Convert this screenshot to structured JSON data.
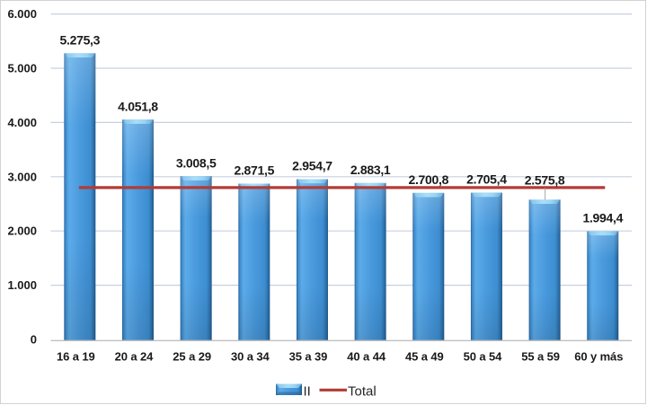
{
  "chart_data": {
    "type": "bar",
    "title": "",
    "categories": [
      "16 a 19",
      "20 a 24",
      "25 a 29",
      "30 a 34",
      "35 a 39",
      "40 a 44",
      "45 a 49",
      "50 a 54",
      "55 a 59",
      "60 y más"
    ],
    "series": [
      {
        "name": "II",
        "type": "bar",
        "color": "#4795d5",
        "values": [
          5275.3,
          4051.8,
          3008.5,
          2871.5,
          2954.7,
          2883.1,
          2700.8,
          2705.4,
          2575.8,
          1994.4
        ],
        "data_labels": [
          "5.275,3",
          "4.051,8",
          "3.008,5",
          "2.871,5",
          "2.954,7",
          "2.883,1",
          "2.700,8",
          "2.705,4",
          "2.575,8",
          "1.994,4"
        ]
      },
      {
        "name": "Total",
        "type": "line",
        "color": "#b23b36",
        "value": 2800
      }
    ],
    "y_axis": {
      "min": 0,
      "max": 6000,
      "tick_step": 1000,
      "tick_labels": [
        "0",
        "1.000",
        "2.000",
        "3.000",
        "4.000",
        "5.000",
        "6.000"
      ],
      "gridlines": true
    },
    "x_axis": {
      "label": ""
    },
    "legend_position": "bottom",
    "label_layout": {
      "raised_label_index": 8,
      "raised_label_lift": 17,
      "leader_line": true
    },
    "colors": {
      "grid": "#c7d0e0",
      "axis_line": "#c0c0c0",
      "text": "#1a1a1a",
      "bar_main": "#4795d5",
      "total_line": "#b23b36"
    }
  }
}
